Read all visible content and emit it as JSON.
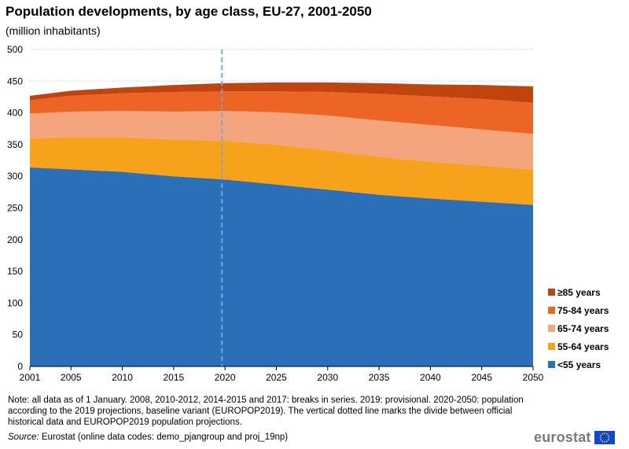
{
  "title": "Population developments, by age class, EU-27, 2001-2050",
  "subtitle": "(million  inhabitants)",
  "note": "Note: all data as of 1 January.  2008, 2010-2012, 2014-2015 and 2017: breaks in series. 2019: provisional. 2020-2050: population  according to the 2019 projections,  baseline variant (EUROPOP2019). The vertical dotted line marks the divide between official historical data and EUROPOP2019 population projections.",
  "source_label": "Source:",
  "source_text": " Eurostat (online data codes: demo_pjangroup and proj_19np)",
  "logo_text": "eurostat",
  "logo_icon": "eu-flag-icon",
  "chart_data": {
    "type": "area",
    "stacked": true,
    "xlabel": "",
    "ylabel": "",
    "xlim": [
      2001,
      2050
    ],
    "ylim": [
      0,
      500
    ],
    "x_ticks": [
      "2001",
      "2005",
      "2010",
      "2015",
      "2020",
      "2025",
      "2030",
      "2035",
      "2040",
      "2045",
      "2050"
    ],
    "y_ticks": [
      "0",
      "50",
      "100",
      "150",
      "200",
      "250",
      "300",
      "350",
      "400",
      "450",
      "500"
    ],
    "divider_year": 2019.7,
    "divider_color": "#6fa8dc",
    "x": [
      2001,
      2005,
      2010,
      2015,
      2020,
      2025,
      2030,
      2035,
      2040,
      2045,
      2050
    ],
    "series": [
      {
        "name": "<55 years",
        "color": "#2970b8",
        "values": [
          314,
          311,
          307,
          300,
          295,
          287,
          279,
          271,
          265,
          260,
          255
        ]
      },
      {
        "name": "55-64 years",
        "color": "#f7a21b",
        "values": [
          46,
          51,
          55,
          58,
          61,
          63,
          62,
          60,
          58,
          57,
          56
        ]
      },
      {
        "name": "65-74 years",
        "color": "#f5a57e",
        "values": [
          39,
          40,
          41,
          44,
          47,
          51,
          55,
          57,
          58,
          57,
          56
        ]
      },
      {
        "name": "75-84 years",
        "color": "#ec6524",
        "values": [
          21,
          25,
          28,
          31,
          31,
          33,
          37,
          42,
          45,
          48,
          49
        ]
      },
      {
        "name": "≥85 years",
        "color": "#c1440e",
        "values": [
          7,
          8,
          9,
          11,
          13,
          14,
          15,
          17,
          19,
          22,
          26
        ]
      }
    ],
    "legend_position": "right"
  }
}
